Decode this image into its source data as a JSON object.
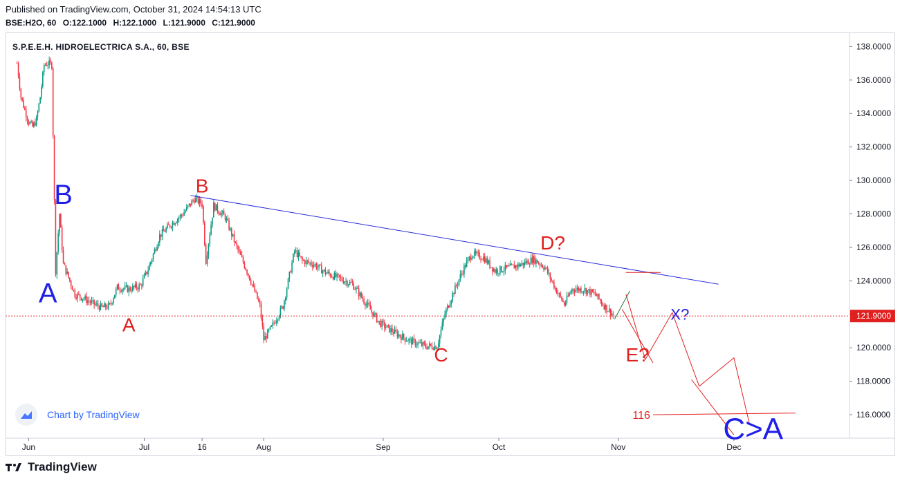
{
  "header": {
    "published": "Published on TradingView.com, October 31, 2024 14:54:13 UTC",
    "symbol": "BSE:H2O, 60",
    "open": "O:122.1000",
    "high": "H:122.1000",
    "low": "L:121.9000",
    "close": "C:121.9000"
  },
  "legend_title": "S.P.E.E.H. HIDROELECTRICA S.A., 60, BSE",
  "watermark": "Chart by TradingView",
  "footer_logo": "TradingView",
  "colors": {
    "up": "#089981",
    "down": "#f23645",
    "wave_blue": "#1f1fe8",
    "wave_red": "#e01f1f",
    "trendline": "#2a2ae0",
    "price_label": "#e01f1f"
  },
  "chart_data": {
    "type": "candlestick",
    "title": "S.P.E.E.H. HIDROELECTRICA S.A., 60, BSE",
    "ylim": [
      114.6,
      138.8
    ],
    "y_ticks": [
      "138.0000",
      "136.0000",
      "134.0000",
      "132.0000",
      "130.0000",
      "128.0000",
      "126.0000",
      "124.0000",
      "122.0000",
      "120.0000",
      "118.0000",
      "116.0000"
    ],
    "y_tick_values": [
      138,
      136,
      134,
      132,
      130,
      128,
      126,
      124,
      122,
      120,
      118,
      116
    ],
    "x_ticks": [
      "Jun",
      "Jul",
      "16",
      "Aug",
      "Sep",
      "Oct",
      "Nov",
      "Dec"
    ],
    "x_tick_dates": [
      "2024-06-01",
      "2024-07-01",
      "2024-07-16",
      "2024-08-01",
      "2024-09-01",
      "2024-10-01",
      "2024-11-01",
      "2024-12-01"
    ],
    "last_price": "121.9000",
    "last_price_value": 121.9,
    "price_path": [
      [
        "2024-05-29",
        137.0
      ],
      [
        "2024-05-30",
        135.0
      ],
      [
        "2024-05-31",
        134.2
      ],
      [
        "2024-06-01",
        133.5
      ],
      [
        "2024-06-02",
        133.2
      ],
      [
        "2024-06-03",
        133.6
      ],
      [
        "2024-06-04",
        135.0
      ],
      [
        "2024-06-05",
        136.9
      ],
      [
        "2024-06-06",
        137.0
      ],
      [
        "2024-06-07",
        136.9
      ],
      [
        "2024-06-08",
        124.6
      ],
      [
        "2024-06-09",
        128.0
      ],
      [
        "2024-06-10",
        125.0
      ],
      [
        "2024-06-11",
        124.4
      ],
      [
        "2024-06-13",
        123.2
      ],
      [
        "2024-06-15",
        123.0
      ],
      [
        "2024-06-18",
        122.6
      ],
      [
        "2024-06-20",
        122.4
      ],
      [
        "2024-06-22",
        122.5
      ],
      [
        "2024-06-24",
        123.6
      ],
      [
        "2024-06-27",
        123.5
      ],
      [
        "2024-06-30",
        123.7
      ],
      [
        "2024-07-02",
        124.7
      ],
      [
        "2024-07-05",
        126.7
      ],
      [
        "2024-07-08",
        127.4
      ],
      [
        "2024-07-11",
        128.0
      ],
      [
        "2024-07-14",
        128.9
      ],
      [
        "2024-07-16",
        128.6
      ],
      [
        "2024-07-17",
        125.2
      ],
      [
        "2024-07-19",
        128.5
      ],
      [
        "2024-07-22",
        127.8
      ],
      [
        "2024-07-25",
        126.0
      ],
      [
        "2024-07-28",
        124.4
      ],
      [
        "2024-07-31",
        122.5
      ],
      [
        "2024-08-01",
        120.5
      ],
      [
        "2024-08-03",
        121.2
      ],
      [
        "2024-08-06",
        122.5
      ],
      [
        "2024-08-09",
        125.8
      ],
      [
        "2024-08-11",
        125.2
      ],
      [
        "2024-08-14",
        125.0
      ],
      [
        "2024-08-17",
        124.5
      ],
      [
        "2024-08-20",
        124.2
      ],
      [
        "2024-08-24",
        123.8
      ],
      [
        "2024-08-28",
        122.5
      ],
      [
        "2024-08-31",
        121.5
      ],
      [
        "2024-09-04",
        120.9
      ],
      [
        "2024-09-08",
        120.4
      ],
      [
        "2024-09-12",
        120.1
      ],
      [
        "2024-09-15",
        120.1
      ],
      [
        "2024-09-17",
        122.0
      ],
      [
        "2024-09-19",
        123.2
      ],
      [
        "2024-09-22",
        124.8
      ],
      [
        "2024-09-24",
        125.6
      ],
      [
        "2024-09-27",
        125.4
      ],
      [
        "2024-09-30",
        124.6
      ],
      [
        "2024-10-04",
        124.8
      ],
      [
        "2024-10-07",
        125.0
      ],
      [
        "2024-10-10",
        125.3
      ],
      [
        "2024-10-13",
        124.8
      ],
      [
        "2024-10-16",
        123.4
      ],
      [
        "2024-10-18",
        122.6
      ],
      [
        "2024-10-20",
        123.5
      ],
      [
        "2024-10-23",
        123.5
      ],
      [
        "2024-10-26",
        123.2
      ],
      [
        "2024-10-28",
        122.6
      ],
      [
        "2024-10-31",
        121.9
      ]
    ],
    "annotations": [
      {
        "label": "B",
        "color": "blue",
        "date": "2024-06-10",
        "price": 129.2
      },
      {
        "label": "A",
        "color": "blue",
        "date": "2024-06-06",
        "price": 123.3
      },
      {
        "label": "A",
        "color": "red",
        "date": "2024-06-27",
        "price": 121.4
      },
      {
        "label": "B",
        "color": "red",
        "date": "2024-07-16",
        "price": 129.7
      },
      {
        "label": "C",
        "color": "red",
        "date": "2024-09-16",
        "price": 119.6
      },
      {
        "label": "D?",
        "color": "red",
        "date": "2024-10-15",
        "price": 126.3
      },
      {
        "label": "E?",
        "color": "red",
        "date": "2024-11-06",
        "price": 119.6
      },
      {
        "label": "X?",
        "color": "blue",
        "date": "2024-11-17",
        "price": 122.0
      },
      {
        "label": "C>A",
        "color": "blue",
        "date": "2024-12-06",
        "price": 115.2
      },
      {
        "label": "116",
        "color": "red",
        "date": "2024-11-07",
        "price": 116.0
      }
    ],
    "trendline": {
      "from": [
        "2024-07-13",
        129.1
      ],
      "to": [
        "2024-11-27",
        123.8
      ]
    },
    "target_line": {
      "from": [
        "2024-11-10",
        116.0
      ],
      "to": [
        "2024-12-17",
        116.1
      ]
    },
    "projection_red": [
      [
        "2024-11-03",
        123.2
      ],
      [
        "2024-11-08",
        119.3
      ],
      [
        "2024-11-15",
        122.1
      ],
      [
        "2024-11-22",
        117.7
      ],
      [
        "2024-12-01",
        119.4
      ],
      [
        "2024-12-05",
        115.5
      ]
    ],
    "projection_red2": [
      [
        "2024-11-02",
        122.3
      ],
      [
        "2024-11-10",
        119.1
      ]
    ],
    "projection_red3": [
      [
        "2024-11-20",
        118.1
      ],
      [
        "2024-12-01",
        114.8
      ]
    ],
    "projection_green": [
      [
        "2024-10-31",
        121.7
      ],
      [
        "2024-11-04",
        123.4
      ]
    ],
    "small_marker": {
      "from": [
        "2024-11-03",
        124.5
      ],
      "to": [
        "2024-11-12",
        124.5
      ]
    }
  }
}
